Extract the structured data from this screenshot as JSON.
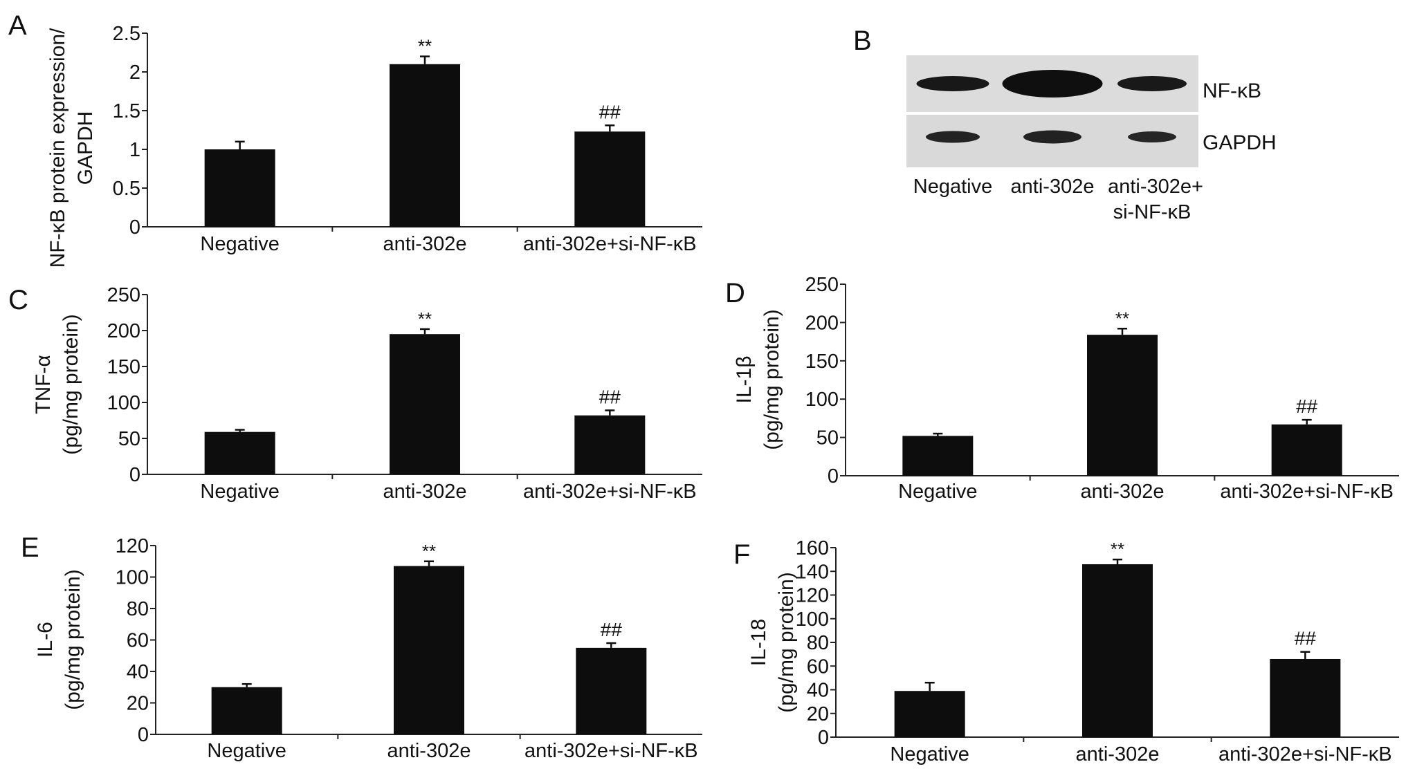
{
  "colors": {
    "bar": "#0d0d0d",
    "axis": "#222222",
    "blot_bg": "#dcdcdc",
    "band": "#121212"
  },
  "chart_data": [
    {
      "panel": "A",
      "type": "bar",
      "categories": [
        "Negative",
        "anti-302e",
        "anti-302e+si-NF-κB"
      ],
      "values": [
        1.0,
        2.1,
        1.23
      ],
      "errors": [
        0.1,
        0.1,
        0.08
      ],
      "annotations": [
        "",
        "**",
        "##"
      ],
      "ylabel": [
        "NF-κB protein expression/",
        "GAPDH"
      ],
      "ylim": [
        0,
        2.5
      ],
      "yticks": [
        0,
        0.5,
        1,
        1.5,
        2,
        2.5
      ],
      "ytick_labels": [
        "0",
        "0.5",
        "1",
        "1.5",
        "2",
        "2.5"
      ]
    },
    {
      "panel": "C",
      "type": "bar",
      "categories": [
        "Negative",
        "anti-302e",
        "anti-302e+si-NF-κB"
      ],
      "values": [
        59,
        195,
        82
      ],
      "errors": [
        3,
        7,
        7
      ],
      "annotations": [
        "",
        "**",
        "##"
      ],
      "ylabel": [
        "TNF-α",
        "(pg/mg protein)"
      ],
      "ylim": [
        0,
        250
      ],
      "yticks": [
        0,
        50,
        100,
        150,
        200,
        250
      ],
      "ytick_labels": [
        "0",
        "50",
        "100",
        "150",
        "200",
        "250"
      ]
    },
    {
      "panel": "D",
      "type": "bar",
      "categories": [
        "Negative",
        "anti-302e",
        "anti-302e+si-NF-κB"
      ],
      "values": [
        52,
        184,
        67
      ],
      "errors": [
        3,
        8,
        6
      ],
      "annotations": [
        "",
        "**",
        "##"
      ],
      "ylabel": [
        "IL-1β",
        "(pg/mg protein)"
      ],
      "ylim": [
        0,
        250
      ],
      "yticks": [
        0,
        50,
        100,
        150,
        200,
        250
      ],
      "ytick_labels": [
        "0",
        "50",
        "100",
        "150",
        "200",
        "250"
      ]
    },
    {
      "panel": "E",
      "type": "bar",
      "categories": [
        "Negative",
        "anti-302e",
        "anti-302e+si-NF-κB"
      ],
      "values": [
        30,
        107,
        55
      ],
      "errors": [
        2,
        3,
        3
      ],
      "annotations": [
        "",
        "**",
        "##"
      ],
      "ylabel": [
        "IL-6",
        "(pg/mg protein)"
      ],
      "ylim": [
        0,
        120
      ],
      "yticks": [
        0,
        20,
        40,
        60,
        80,
        100,
        120
      ],
      "ytick_labels": [
        "0",
        "20",
        "40",
        "60",
        "80",
        "100",
        "120"
      ]
    },
    {
      "panel": "F",
      "type": "bar",
      "categories": [
        "Negative",
        "anti-302e",
        "anti-302e+si-NF-κB"
      ],
      "values": [
        39,
        146,
        66
      ],
      "errors": [
        7,
        4,
        6
      ],
      "annotations": [
        "",
        "**",
        "##"
      ],
      "ylabel": [
        "IL-18",
        "(pg/mg protein)"
      ],
      "ylim": [
        0,
        160
      ],
      "yticks": [
        0,
        20,
        40,
        60,
        80,
        100,
        120,
        140,
        160
      ],
      "ytick_labels": [
        "0",
        "20",
        "40",
        "60",
        "80",
        "100",
        "120",
        "140",
        "160"
      ]
    }
  ],
  "blot": {
    "panel": "B",
    "bands": [
      {
        "label": "NF-κB",
        "intensities": [
          0.8,
          1.0,
          0.78
        ]
      },
      {
        "label": "GAPDH",
        "intensities": [
          0.55,
          0.58,
          0.5
        ]
      }
    ],
    "lanes": [
      "Negative",
      "anti-302e",
      "anti-302e+",
      "si-NF-κB"
    ]
  }
}
